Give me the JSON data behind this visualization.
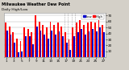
{
  "title": "Milwaukee Weather Dew Point",
  "subtitle": "Daily High/Low",
  "days": [
    1,
    2,
    3,
    4,
    5,
    6,
    7,
    8,
    9,
    10,
    11,
    12,
    13,
    14,
    15,
    16,
    17,
    18,
    19,
    20,
    21,
    22,
    23,
    24,
    25,
    26,
    27
  ],
  "high": [
    58,
    52,
    42,
    32,
    28,
    50,
    48,
    42,
    70,
    60,
    55,
    50,
    60,
    55,
    58,
    52,
    42,
    30,
    50,
    58,
    62,
    55,
    58,
    60,
    58,
    62,
    55
  ],
  "low": [
    45,
    38,
    25,
    8,
    10,
    35,
    35,
    22,
    52,
    45,
    38,
    32,
    45,
    38,
    44,
    35,
    25,
    12,
    35,
    42,
    48,
    38,
    44,
    48,
    44,
    50,
    42
  ],
  "high_color": "#ff0000",
  "low_color": "#0000cc",
  "bg_color": "#d4d0c8",
  "plot_bg": "#ffffff",
  "grid_color": "#aaaaaa",
  "ylim": [
    0,
    75
  ],
  "ytick_vals": [
    10,
    20,
    30,
    40,
    50,
    60,
    70
  ],
  "legend_high": "High",
  "legend_low": "Low",
  "dotted_lines": [
    16,
    17,
    18,
    19
  ],
  "bar_width": 0.4
}
